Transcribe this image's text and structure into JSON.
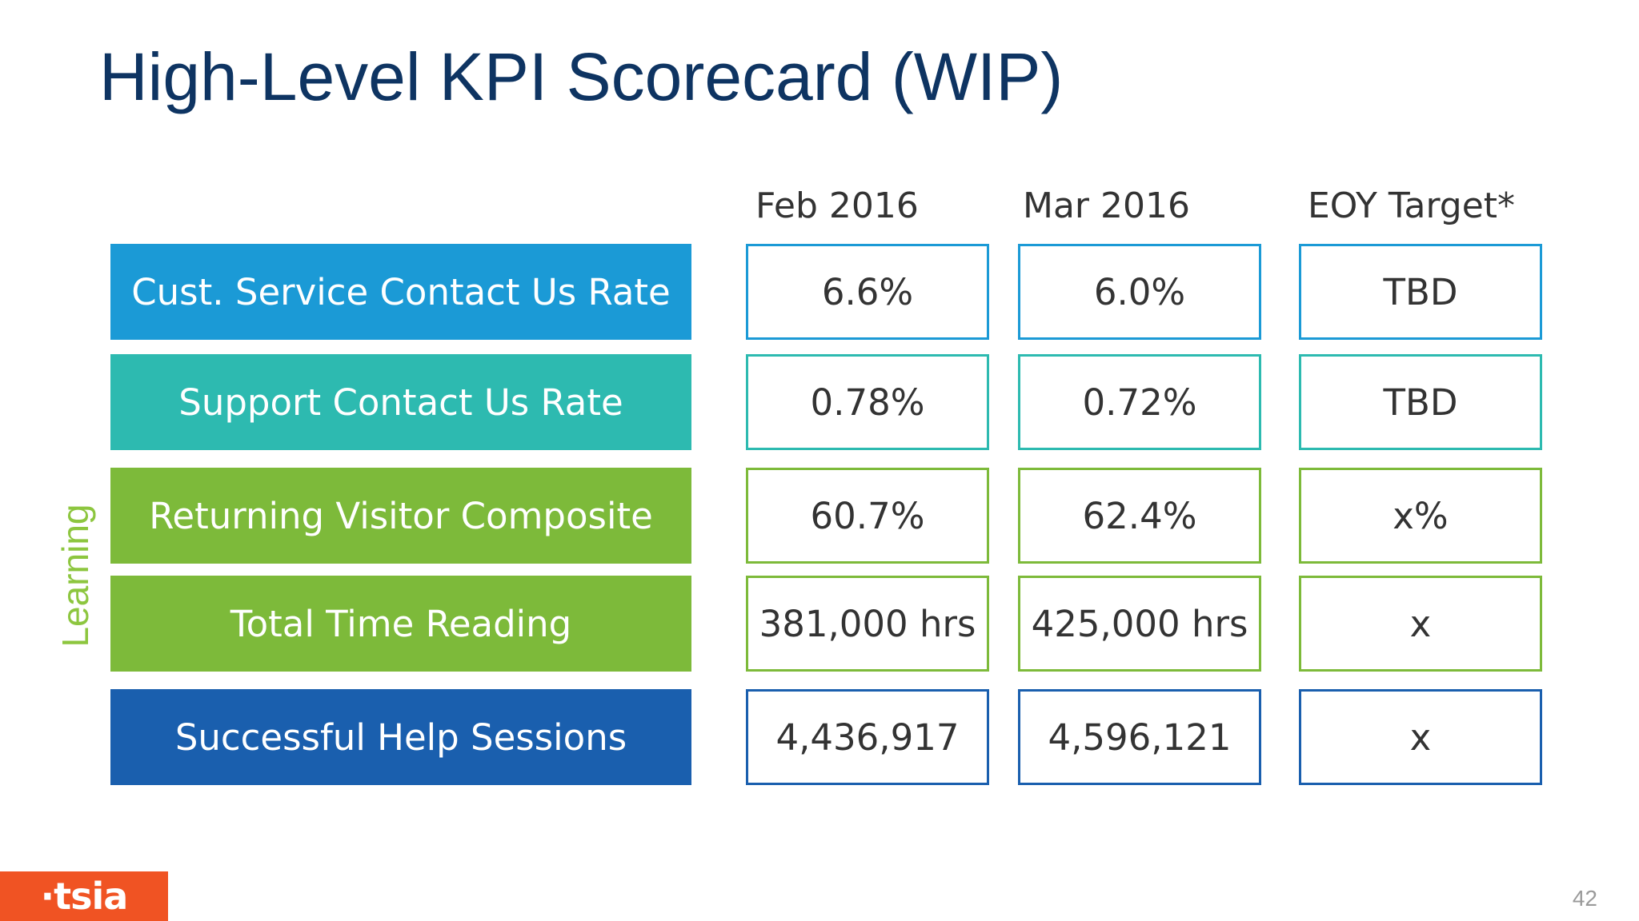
{
  "slide": {
    "title": "High-Level KPI Scorecard (WIP)",
    "page_number": "42"
  },
  "logo": {
    "text": "·tsia",
    "color": "#f05323"
  },
  "category_label": {
    "text": "Learning",
    "color": "#8dc63f"
  },
  "columns": [
    "Feb 2016",
    "Mar 2016",
    "EOY Target*"
  ],
  "rows": [
    {
      "label": "Cust. Service Contact Us Rate",
      "color": "#1b9ad6",
      "values": [
        "6.6%",
        "6.0%",
        "TBD"
      ]
    },
    {
      "label": "Support Contact Us Rate",
      "color": "#2dbab0",
      "values": [
        "0.78%",
        "0.72%",
        "TBD"
      ]
    },
    {
      "label": "Returning Visitor Composite",
      "color": "#7dba3a",
      "values": [
        "60.7%",
        "62.4%",
        "x%"
      ]
    },
    {
      "label": "Total Time Reading",
      "color": "#7dba3a",
      "values": [
        "381,000 hrs",
        "425,000 hrs",
        "x"
      ]
    },
    {
      "label": "Successful Help Sessions",
      "color": "#1a5fae",
      "values": [
        "4,436,917",
        "4,596,121",
        "x"
      ]
    }
  ]
}
